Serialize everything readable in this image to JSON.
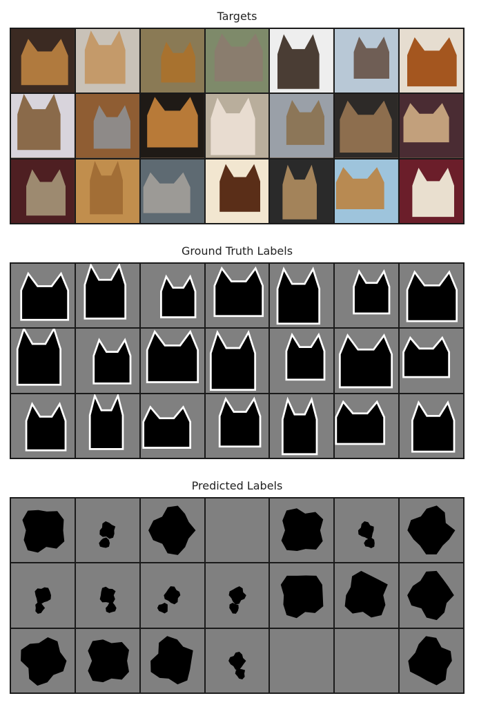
{
  "panels": [
    {
      "title": "Targets",
      "kind": "photo"
    },
    {
      "title": "Ground Truth Labels",
      "kind": "truth"
    },
    {
      "title": "Predicted Labels",
      "kind": "pred"
    }
  ],
  "colors": {
    "mask_bg": "#808080",
    "mask_fg": "#000000",
    "mask_edge": "#ffffff",
    "grid_line": "#1a1a1a"
  }
}
